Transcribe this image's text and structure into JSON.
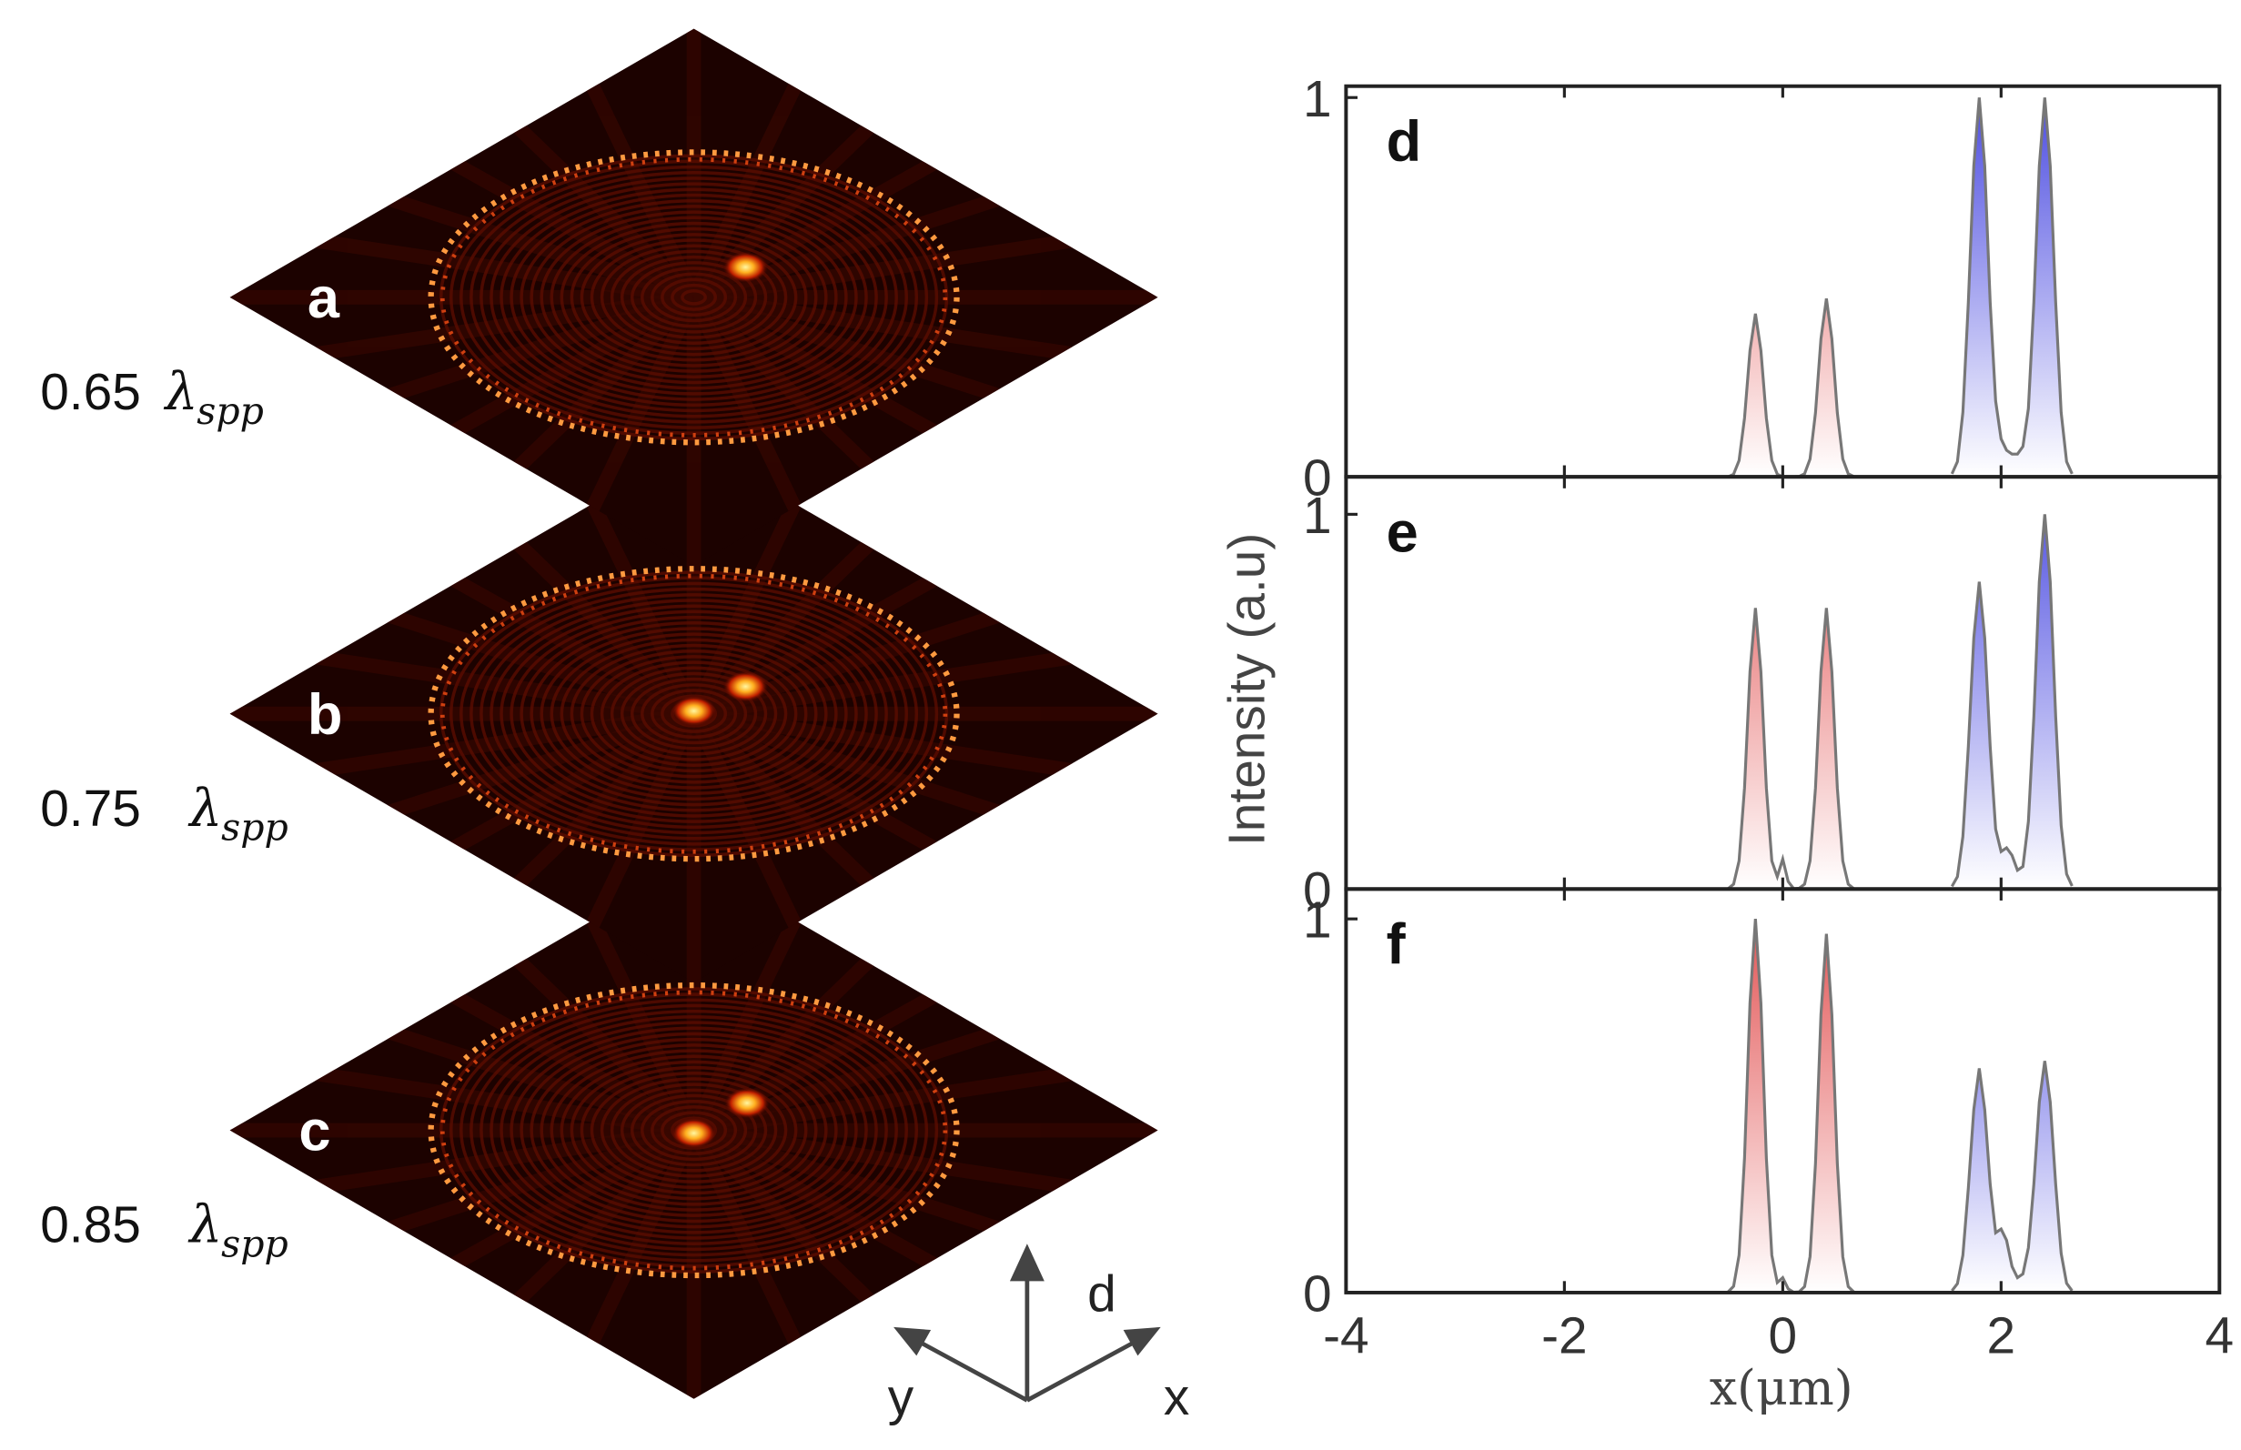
{
  "panels": [
    {
      "label": "a",
      "wavelength": "0.65",
      "symbol": "λ",
      "subscript": "spp"
    },
    {
      "label": "b",
      "wavelength": "0.75",
      "symbol": "λ",
      "subscript": "spp"
    },
    {
      "label": "c",
      "wavelength": "0.85",
      "symbol": "λ",
      "subscript": "spp"
    }
  ],
  "axes_icon": {
    "up": "d",
    "left": "y",
    "right": "x"
  },
  "chart_data": [
    {
      "type": "line",
      "panel_label": "d",
      "xlim": [
        -4,
        4
      ],
      "xticks": [
        -4,
        -2,
        0,
        2,
        4
      ],
      "show_xticklabels": false,
      "ylim": [
        0,
        1.03
      ],
      "yticks": [
        0,
        1
      ],
      "series": [
        {
          "color": "#e04848",
          "x": [
            -0.5,
            -0.45,
            -0.4,
            -0.35,
            -0.3,
            -0.25,
            -0.2,
            -0.15,
            -0.1,
            -0.05,
            0,
            0.05,
            0.1,
            0.15,
            0.2,
            0.25,
            0.3,
            0.35,
            0.4,
            0.45,
            0.5,
            0.55,
            0.6,
            0.65
          ],
          "values": [
            0,
            0.007,
            0.043,
            0.155,
            0.333,
            0.43,
            0.333,
            0.155,
            0.043,
            0.007,
            0,
            0,
            0,
            0.001,
            0.008,
            0.047,
            0.169,
            0.364,
            0.47,
            0.364,
            0.169,
            0.047,
            0.008,
            0.001
          ]
        },
        {
          "color": "#4848e0",
          "x": [
            1.55,
            1.6,
            1.65,
            1.7,
            1.75,
            1.8,
            1.85,
            1.9,
            1.95,
            2,
            2.05,
            2.1,
            2.15,
            2.2,
            2.25,
            2.3,
            2.35,
            2.4,
            2.45,
            2.5,
            2.55,
            2.6,
            2.65
          ],
          "values": [
            0.008,
            0.04,
            0.17,
            0.46,
            0.82,
            1,
            0.82,
            0.46,
            0.2,
            0.1,
            0.07,
            0.06,
            0.06,
            0.08,
            0.18,
            0.46,
            0.82,
            1,
            0.82,
            0.46,
            0.17,
            0.04,
            0.008
          ]
        }
      ]
    },
    {
      "type": "line",
      "panel_label": "e",
      "ylabel": "Intensity (a.u)",
      "xlim": [
        -4,
        4
      ],
      "xticks": [
        -4,
        -2,
        0,
        2,
        4
      ],
      "show_xticklabels": false,
      "ylim": [
        0,
        1.1
      ],
      "yticks": [
        0,
        1
      ],
      "series": [
        {
          "color": "#e04848",
          "x": [
            -0.5,
            -0.45,
            -0.4,
            -0.35,
            -0.3,
            -0.25,
            -0.2,
            -0.15,
            -0.1,
            -0.05,
            0,
            0.05,
            0.1,
            0.15,
            0.2,
            0.25,
            0.3,
            0.35,
            0.4,
            0.45,
            0.5,
            0.55,
            0.6,
            0.65
          ],
          "values": [
            0.001,
            0.013,
            0.075,
            0.27,
            0.58,
            0.75,
            0.58,
            0.27,
            0.075,
            0.033,
            0.08,
            0.02,
            0.001,
            0.002,
            0.013,
            0.075,
            0.27,
            0.58,
            0.75,
            0.58,
            0.27,
            0.075,
            0.013,
            0.001
          ]
        },
        {
          "color": "#4848e0",
          "x": [
            1.55,
            1.6,
            1.65,
            1.7,
            1.75,
            1.8,
            1.85,
            1.9,
            1.95,
            2,
            2.05,
            2.1,
            2.15,
            2.2,
            2.25,
            2.3,
            2.35,
            2.4,
            2.45,
            2.5,
            2.55,
            2.6,
            2.65
          ],
          "values": [
            0.007,
            0.033,
            0.14,
            0.38,
            0.67,
            0.82,
            0.67,
            0.38,
            0.16,
            0.1,
            0.11,
            0.09,
            0.05,
            0.06,
            0.18,
            0.46,
            0.82,
            1,
            0.82,
            0.46,
            0.17,
            0.04,
            0.008
          ]
        }
      ]
    },
    {
      "type": "line",
      "panel_label": "f",
      "xlabel": "x(μm)",
      "xlim": [
        -4,
        4
      ],
      "xticks": [
        -4,
        -2,
        0,
        2,
        4
      ],
      "show_xticklabels": true,
      "ylim": [
        0,
        1.08
      ],
      "yticks": [
        0,
        1
      ],
      "series": [
        {
          "color": "#e04848",
          "x": [
            -0.5,
            -0.45,
            -0.4,
            -0.35,
            -0.3,
            -0.25,
            -0.2,
            -0.15,
            -0.1,
            -0.05,
            0,
            0.05,
            0.1,
            0.15,
            0.2,
            0.25,
            0.3,
            0.35,
            0.4,
            0.45,
            0.5,
            0.55,
            0.6,
            0.65
          ],
          "values": [
            0.002,
            0.017,
            0.1,
            0.36,
            0.775,
            1,
            0.775,
            0.36,
            0.1,
            0.027,
            0.04,
            0.01,
            0.001,
            0.002,
            0.016,
            0.096,
            0.346,
            0.744,
            0.96,
            0.744,
            0.346,
            0.096,
            0.016,
            0.002
          ]
        },
        {
          "color": "#4848e0",
          "x": [
            1.55,
            1.6,
            1.65,
            1.7,
            1.75,
            1.8,
            1.85,
            1.9,
            1.95,
            2,
            2.05,
            2.1,
            2.15,
            2.2,
            2.25,
            2.3,
            2.35,
            2.4,
            2.45,
            2.5,
            2.55,
            2.6,
            2.65
          ],
          "values": [
            0.005,
            0.024,
            0.1,
            0.28,
            0.49,
            0.6,
            0.49,
            0.29,
            0.16,
            0.17,
            0.14,
            0.07,
            0.04,
            0.05,
            0.12,
            0.29,
            0.51,
            0.62,
            0.51,
            0.29,
            0.105,
            0.025,
            0.005
          ]
        }
      ]
    }
  ]
}
